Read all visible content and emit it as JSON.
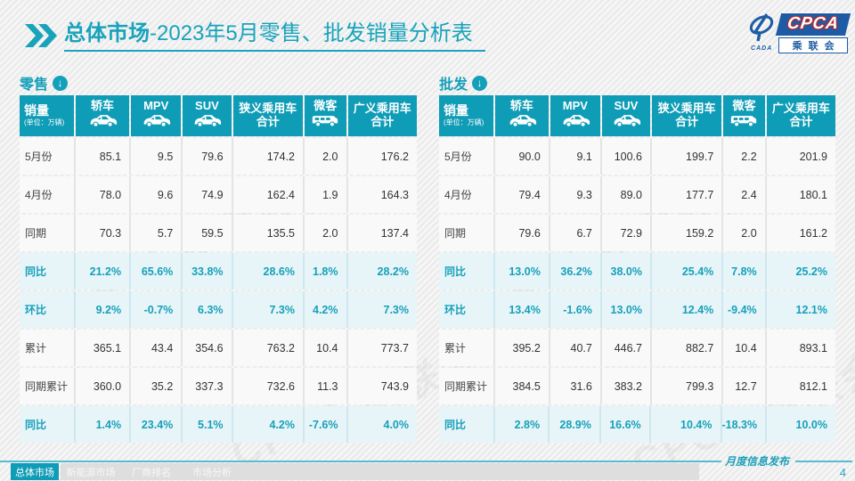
{
  "title": {
    "highlight": "总体市场",
    "rest": "-2023年5月零售、批发销量分析表"
  },
  "logo": {
    "cada_text": "CADA",
    "cpca_text": "CPCA",
    "cpca_sub": "乘联会"
  },
  "colors": {
    "teal": "#14a0b9",
    "header_teal": "#0f9cb6",
    "percent_row_bg": "#e7f5f9",
    "navy": "#1d5ca5"
  },
  "table_header": {
    "first_label": "销量",
    "first_unit": "(单位：万辆)",
    "cols": [
      {
        "label": "轿车",
        "icon": "car-icon"
      },
      {
        "label": "MPV",
        "icon": "car-icon"
      },
      {
        "label": "SUV",
        "icon": "car-icon"
      },
      {
        "label": "狭义乘用车",
        "line2": "合计",
        "icon": null
      },
      {
        "label": "微客",
        "icon": "van-icon"
      },
      {
        "label": "广义乘用车",
        "line2": "合计",
        "icon": null
      }
    ]
  },
  "tables": [
    {
      "section_label": "零售",
      "arrow_icon": "circle-down-arrow-icon",
      "rows": [
        {
          "label": "5月份",
          "type": "normal",
          "values": [
            "85.1",
            "9.5",
            "79.6",
            "174.2",
            "2.0",
            "176.2"
          ]
        },
        {
          "label": "4月份",
          "type": "normal",
          "values": [
            "78.0",
            "9.6",
            "74.9",
            "162.4",
            "1.9",
            "164.3"
          ]
        },
        {
          "label": "同期",
          "type": "normal",
          "values": [
            "70.3",
            "5.7",
            "59.5",
            "135.5",
            "2.0",
            "137.4"
          ]
        },
        {
          "label": "同比",
          "type": "percent",
          "values": [
            "21.2%",
            "65.6%",
            "33.8%",
            "28.6%",
            "1.8%",
            "28.2%"
          ]
        },
        {
          "label": "环比",
          "type": "percent",
          "values": [
            "9.2%",
            "-0.7%",
            "6.3%",
            "7.3%",
            "4.2%",
            "7.3%"
          ]
        },
        {
          "label": "累计",
          "type": "normal",
          "values": [
            "365.1",
            "43.4",
            "354.6",
            "763.2",
            "10.4",
            "773.7"
          ]
        },
        {
          "label": "同期累计",
          "type": "normal",
          "values": [
            "360.0",
            "35.2",
            "337.3",
            "732.6",
            "11.3",
            "743.9"
          ]
        },
        {
          "label": "同比",
          "type": "percent",
          "values": [
            "1.4%",
            "23.4%",
            "5.1%",
            "4.2%",
            "-7.6%",
            "4.0%"
          ]
        }
      ]
    },
    {
      "section_label": "批发",
      "arrow_icon": "circle-down-arrow-icon",
      "rows": [
        {
          "label": "5月份",
          "type": "normal",
          "values": [
            "90.0",
            "9.1",
            "100.6",
            "199.7",
            "2.2",
            "201.9"
          ]
        },
        {
          "label": "4月份",
          "type": "normal",
          "values": [
            "79.4",
            "9.3",
            "89.0",
            "177.7",
            "2.4",
            "180.1"
          ]
        },
        {
          "label": "同期",
          "type": "normal",
          "values": [
            "79.6",
            "6.7",
            "72.9",
            "159.2",
            "2.0",
            "161.2"
          ]
        },
        {
          "label": "同比",
          "type": "percent",
          "values": [
            "13.0%",
            "36.2%",
            "38.0%",
            "25.4%",
            "7.8%",
            "25.2%"
          ]
        },
        {
          "label": "环比",
          "type": "percent",
          "values": [
            "13.4%",
            "-1.6%",
            "13.0%",
            "12.4%",
            "-9.4%",
            "12.1%"
          ]
        },
        {
          "label": "累计",
          "type": "normal",
          "values": [
            "395.2",
            "40.7",
            "446.7",
            "882.7",
            "10.4",
            "893.1"
          ]
        },
        {
          "label": "同期累计",
          "type": "normal",
          "values": [
            "384.5",
            "31.6",
            "383.2",
            "799.3",
            "12.7",
            "812.1"
          ]
        },
        {
          "label": "同比",
          "type": "percent",
          "values": [
            "2.8%",
            "28.9%",
            "16.6%",
            "10.4%",
            "-18.3%",
            "10.0%"
          ]
        }
      ]
    }
  ],
  "watermark_text": "CPCA 乘联会",
  "footer": {
    "tabs": [
      {
        "label": "总体市场",
        "active": true
      },
      {
        "label": "新能源市场",
        "active": false
      },
      {
        "label": "厂商排名",
        "active": false
      },
      {
        "label": "市场分析",
        "active": false
      }
    ],
    "publish_label": "月度信息发布",
    "page_number": "4"
  }
}
